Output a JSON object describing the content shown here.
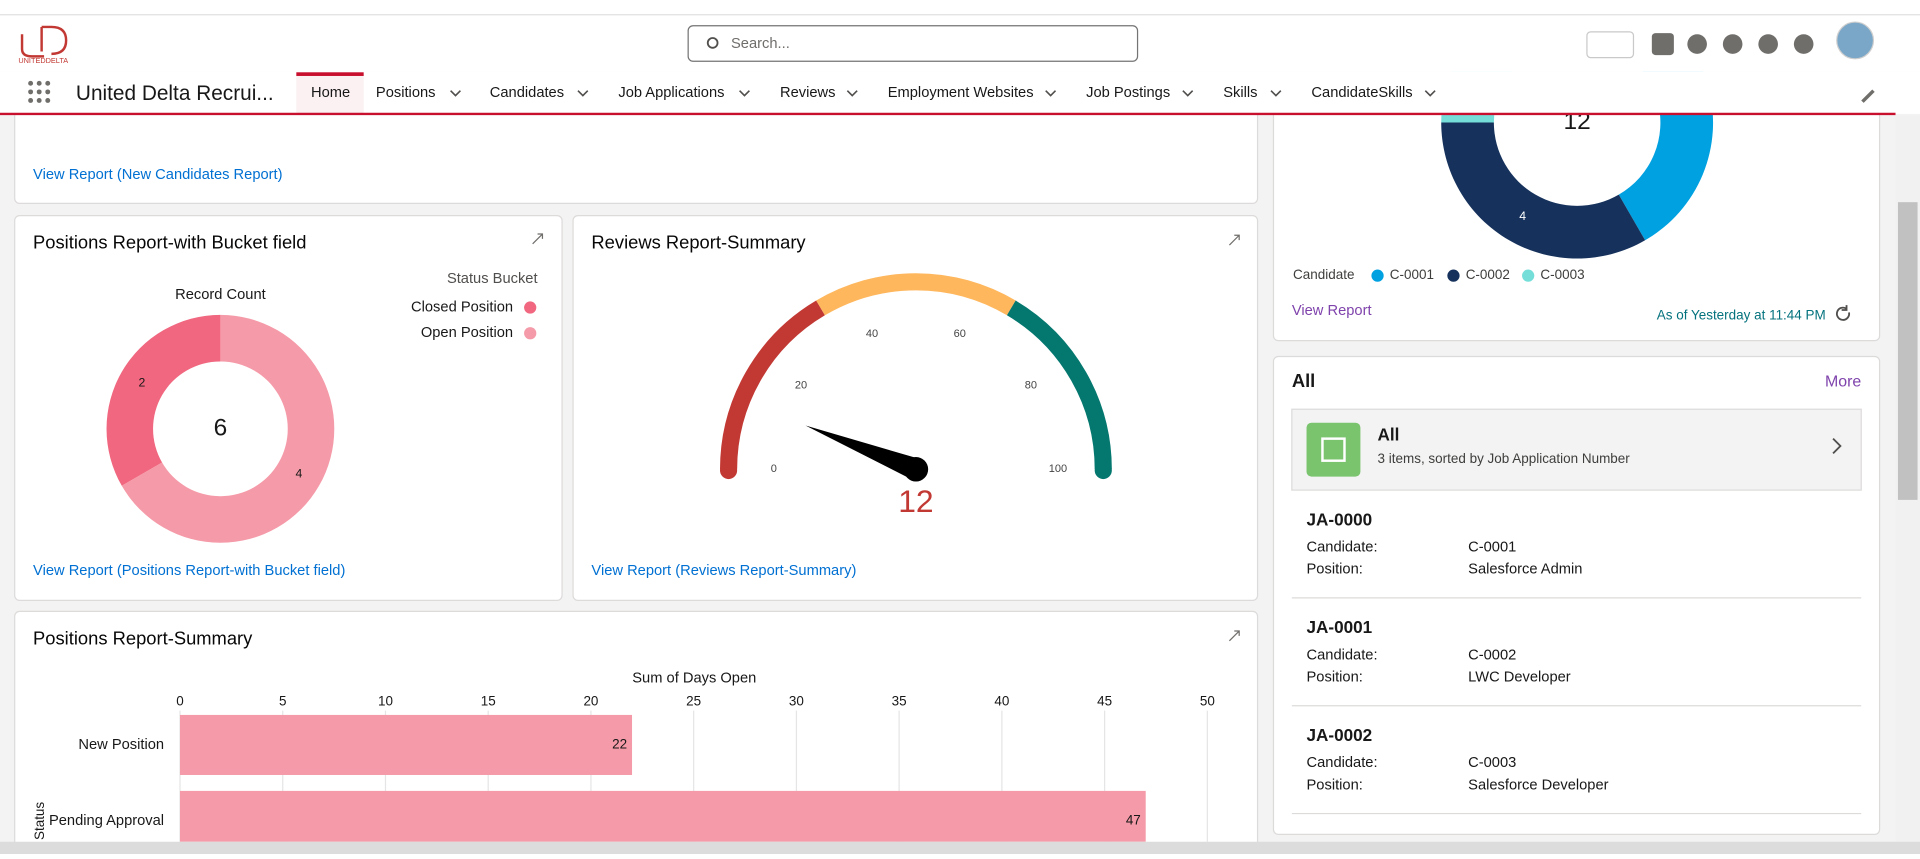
{
  "header": {
    "logo": "UNITEDDELTA",
    "search_placeholder": "Search..."
  },
  "nav": {
    "app_name": "United Delta Recrui...",
    "tabs": [
      "Home",
      "Positions",
      "Candidates",
      "Job Applications",
      "Reviews",
      "Employment Websites",
      "Job Postings",
      "Skills",
      "CandidateSkills"
    ]
  },
  "new_candidates_card": {
    "link": "View Report (New Candidates Report)"
  },
  "bucket_card": {
    "title": "Positions Report-with Bucket field",
    "link": "View Report (Positions Report-with Bucket field)",
    "chart_data": {
      "type": "donut",
      "value_label": "Record Count",
      "legend_title": "Status Bucket",
      "categories": [
        "Closed Position",
        "Open Position"
      ],
      "values": [
        2,
        4
      ],
      "colors": [
        "#f0677f",
        "#f59aa8"
      ],
      "total": 6
    }
  },
  "gauge_card": {
    "title": "Reviews Report-Summary",
    "link": "View Report (Reviews Report-Summary)",
    "chart_data": {
      "type": "gauge",
      "value": 12,
      "value_color": "#c23934",
      "ylim": [
        0,
        100
      ],
      "yticks": [
        0,
        20,
        40,
        60,
        80,
        100
      ],
      "bands": [
        {
          "to": 33,
          "color": "#c23934"
        },
        {
          "to": 67,
          "color": "#ffb75d"
        },
        {
          "to": 100,
          "color": "#04776f"
        }
      ]
    }
  },
  "summary_card": {
    "title": "Positions Report-Summary",
    "chart_data": {
      "type": "bar",
      "x_label": "Sum of Days Open",
      "y_label": "Status",
      "categories": [
        "New Position",
        "Pending Approval"
      ],
      "values": [
        22,
        47
      ],
      "color": "#f59aa8",
      "xlim": [
        0,
        50
      ],
      "xticks": [
        0,
        5,
        10,
        15,
        20,
        25,
        30,
        35,
        40,
        45,
        50
      ],
      "grid": true
    }
  },
  "candidate_card": {
    "link": "View Report",
    "timestamp": "As of Yesterday at 11:44 PM",
    "chart_data": {
      "type": "donut",
      "legend_title": "Candidate",
      "categories": [
        "C-0001",
        "C-0002",
        "C-0003"
      ],
      "values": [
        5,
        4,
        3
      ],
      "value_labels": [
        null,
        "4",
        null
      ],
      "colors": [
        "#00a1e0",
        "#16325c",
        "#76ded9"
      ],
      "total": 12
    }
  },
  "list_card": {
    "title": "All",
    "more": "More",
    "list_view": {
      "name": "All",
      "description": "3 items, sorted by Job Application Number"
    },
    "field_labels": [
      "Candidate:",
      "Position:"
    ],
    "records": [
      {
        "id": "JA-0000",
        "candidate": "C-0001",
        "position": "Salesforce Admin"
      },
      {
        "id": "JA-0001",
        "candidate": "C-0002",
        "position": "LWC Developer"
      },
      {
        "id": "JA-0002",
        "candidate": "C-0003",
        "position": "Salesforce Developer"
      }
    ]
  }
}
